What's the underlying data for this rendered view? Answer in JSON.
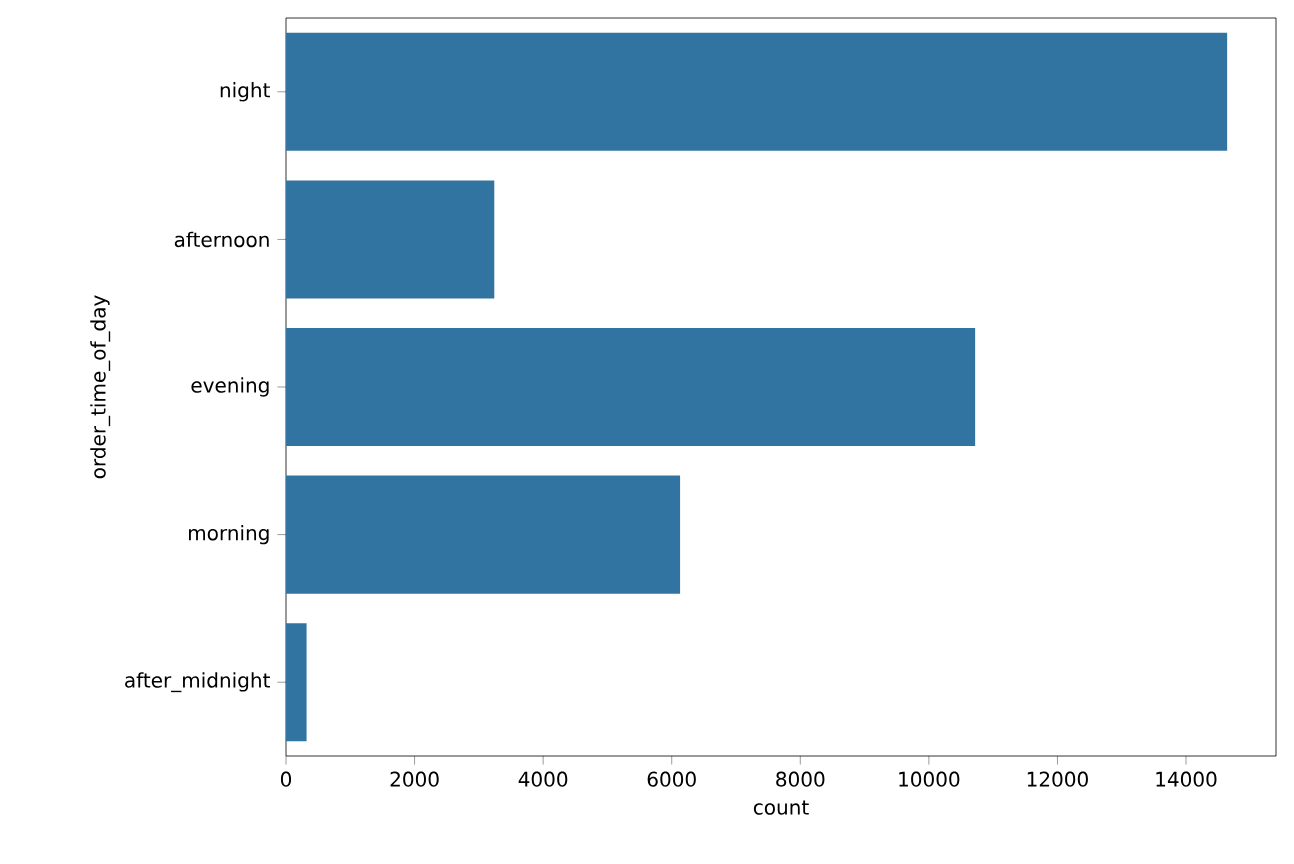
{
  "chart_data": {
    "type": "bar",
    "orientation": "horizontal",
    "xlabel": "count",
    "ylabel": "order_time_of_day",
    "categories": [
      "night",
      "afternoon",
      "evening",
      "morning",
      "after_midnight"
    ],
    "values": [
      14640,
      3240,
      10720,
      6130,
      320
    ],
    "color": "#3274a1",
    "xlim": [
      0,
      15400
    ],
    "xticks": [
      0,
      2000,
      4000,
      6000,
      8000,
      10000,
      12000,
      14000
    ]
  }
}
